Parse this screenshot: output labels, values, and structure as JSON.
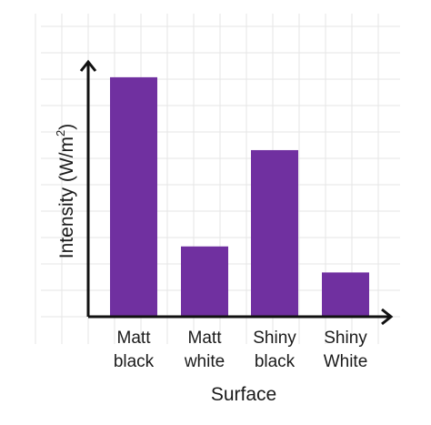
{
  "chart_data": {
    "type": "bar",
    "categories": [
      [
        "Matt",
        "black"
      ],
      [
        "Matt",
        "white"
      ],
      [
        "Shiny",
        "black"
      ],
      [
        "Shiny",
        "White"
      ]
    ],
    "values": [
      9.2,
      2.7,
      6.4,
      1.7
    ],
    "xlabel": "Surface",
    "ylabel": "Intensity (W/m",
    "ylabel_superscript": "2",
    "ylabel_suffix": ")",
    "ylim": [
      0,
      10
    ],
    "grid": true,
    "yticks_labeled": false,
    "colors": {
      "bar": "#7030a0",
      "grid": "#e6e6e6",
      "axis": "#111111"
    }
  }
}
